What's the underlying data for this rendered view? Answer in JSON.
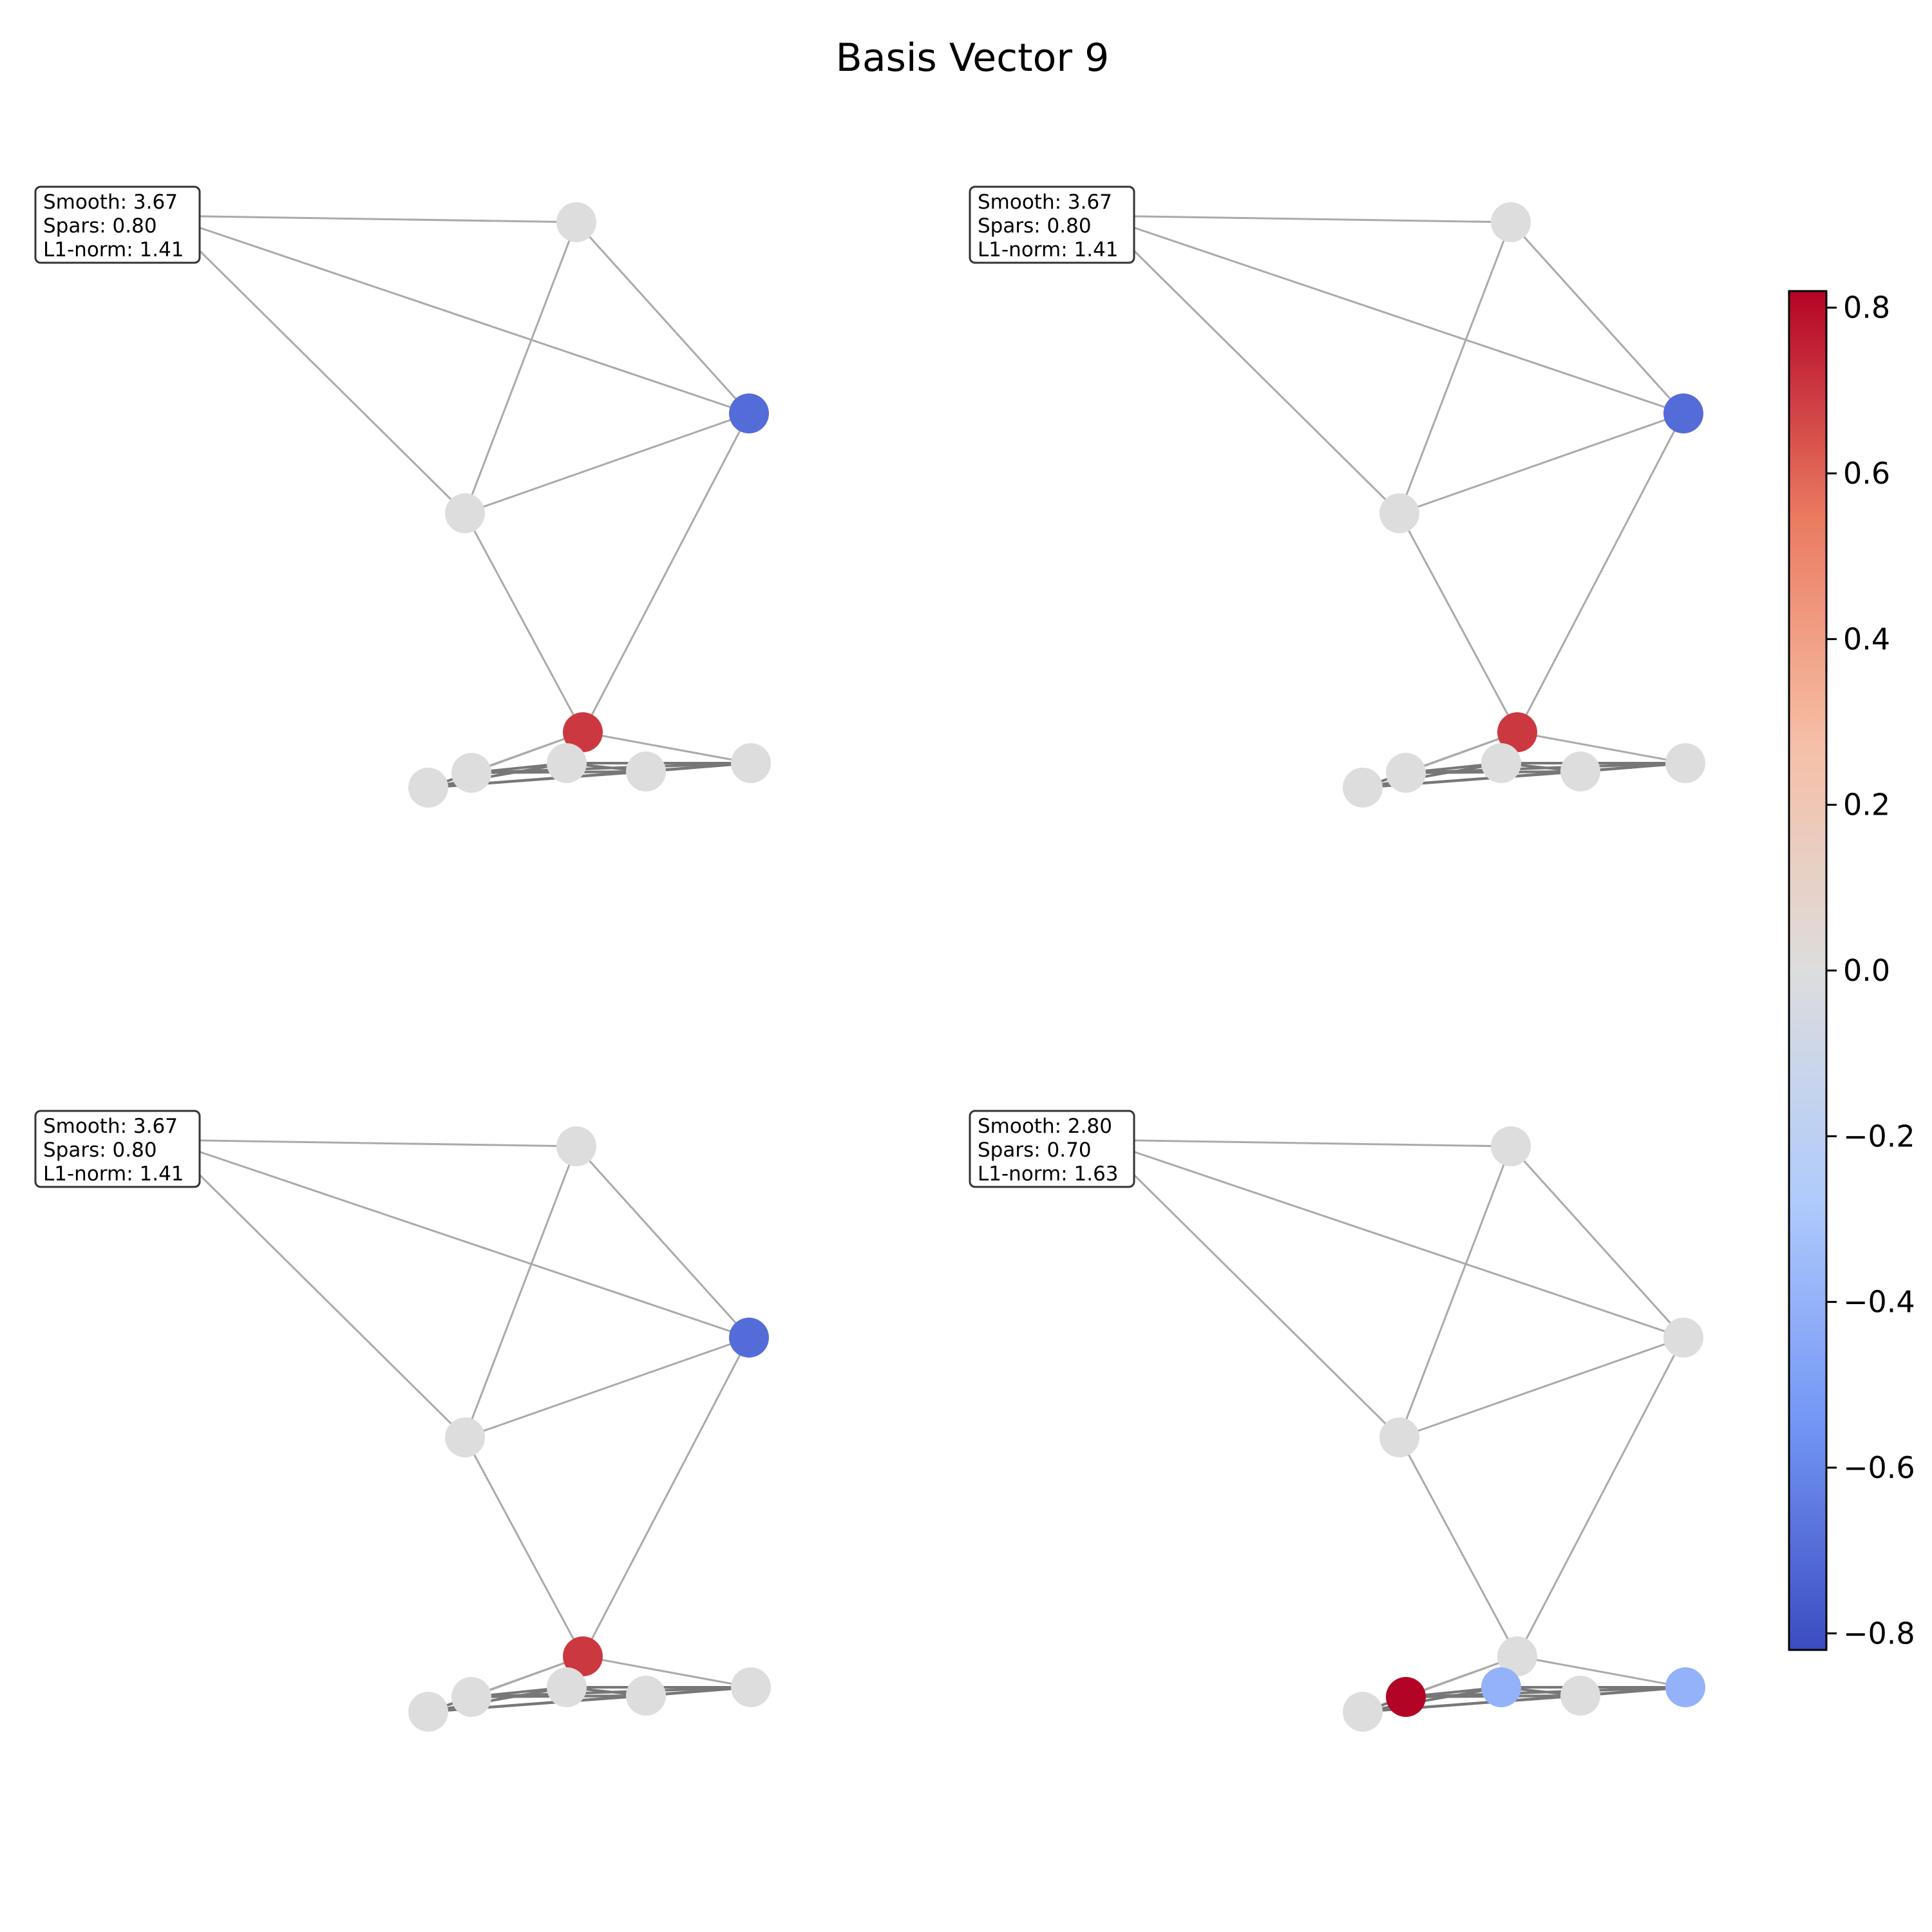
{
  "title": "Basis Vector 9",
  "colors": {
    "edge": "#aaaaaa",
    "edge_dense": "#777777",
    "neutral_node": "#dddddd",
    "colormap": "coolwarm",
    "cmap_stops": [
      "#3b4cc0",
      "#7396f5",
      "#b0cbfc",
      "#dddddd",
      "#f6bfa6",
      "#ea7b60",
      "#b40426"
    ]
  },
  "colorbar": {
    "min": -0.82,
    "max": 0.82,
    "ticks": [
      {
        "value": 0.8,
        "label": "0.8"
      },
      {
        "value": 0.6,
        "label": "0.6"
      },
      {
        "value": 0.4,
        "label": "0.4"
      },
      {
        "value": 0.2,
        "label": "0.2"
      },
      {
        "value": 0.0,
        "label": "0.0"
      },
      {
        "value": -0.2,
        "label": "−0.2"
      },
      {
        "value": -0.4,
        "label": "−0.4"
      },
      {
        "value": -0.6,
        "label": "−0.6"
      },
      {
        "value": -0.8,
        "label": "−0.8"
      }
    ]
  },
  "graph": {
    "edges": [
      [
        0,
        1
      ],
      [
        0,
        2
      ],
      [
        0,
        3
      ],
      [
        1,
        3
      ],
      [
        1,
        2
      ],
      [
        2,
        3
      ],
      [
        3,
        4
      ],
      [
        2,
        4
      ],
      [
        4,
        5
      ],
      [
        4,
        6
      ],
      [
        6,
        7
      ],
      [
        6,
        8
      ],
      [
        7,
        8
      ],
      [
        7,
        9
      ],
      [
        8,
        9
      ],
      [
        6,
        9
      ],
      [
        5,
        6
      ],
      [
        5,
        7
      ],
      [
        5,
        8
      ],
      [
        5,
        9
      ],
      [
        4,
        9
      ]
    ],
    "dense_edges": [
      [
        6,
        7
      ],
      [
        6,
        8
      ],
      [
        7,
        8
      ],
      [
        7,
        9
      ],
      [
        8,
        9
      ],
      [
        6,
        9
      ],
      [
        5,
        6
      ],
      [
        5,
        7
      ],
      [
        5,
        8
      ],
      [
        5,
        9
      ]
    ]
  },
  "panels": [
    {
      "metrics": {
        "smooth": "Smooth: 3.67",
        "spars": "Spars: 0.80",
        "l1": "L1-norm: 1.41"
      },
      "node_values": [
        0,
        0,
        -0.7,
        0,
        0.7,
        0,
        0,
        0,
        0,
        0
      ]
    },
    {
      "metrics": {
        "smooth": "Smooth: 3.67",
        "spars": "Spars: 0.80",
        "l1": "L1-norm: 1.41"
      },
      "node_values": [
        0,
        0,
        -0.7,
        0,
        0.7,
        0,
        0,
        0,
        0,
        0
      ]
    },
    {
      "metrics": {
        "smooth": "Smooth: 3.67",
        "spars": "Spars: 0.80",
        "l1": "L1-norm: 1.41"
      },
      "node_values": [
        0,
        0,
        -0.7,
        0,
        0.7,
        0,
        0,
        0,
        0,
        0
      ]
    },
    {
      "metrics": {
        "smooth": "Smooth: 2.80",
        "spars": "Spars: 0.70",
        "l1": "L1-norm: 1.63"
      },
      "node_values": [
        0,
        0,
        0,
        0,
        0,
        0,
        0.82,
        -0.4,
        0,
        -0.4
      ]
    }
  ]
}
